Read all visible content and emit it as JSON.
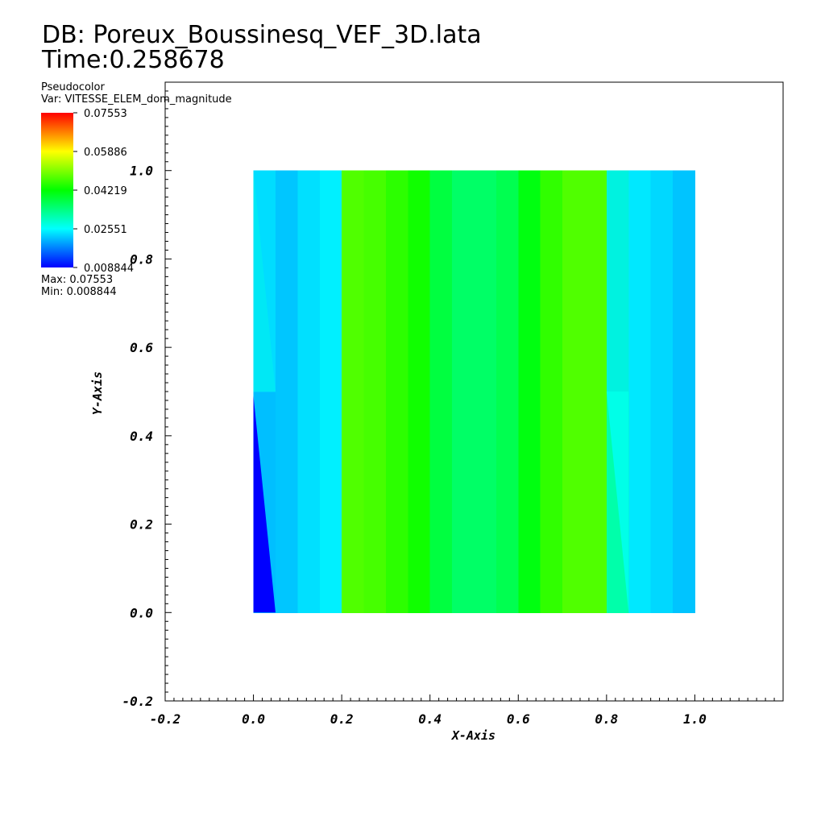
{
  "header": {
    "db_line": "DB: Poreux_Boussinesq_VEF_3D.lata",
    "time_line": "Time:0.258678"
  },
  "legend": {
    "plot_type": "Pseudocolor",
    "var_line": "Var: VITESSE_ELEM_dom_magnitude",
    "max_line": "Max: 0.07553",
    "min_line": "Min: 0.008844",
    "tick_labels": [
      "0.07553",
      "0.05886",
      "0.04219",
      "0.02551",
      "0.008844"
    ],
    "colormap": [
      "#ff0000",
      "#ffff00",
      "#00ff00",
      "#00ffff",
      "#0000ff"
    ]
  },
  "chart_data": {
    "type": "heatmap",
    "title": "DB: Poreux_Boussinesq_VEF_3D.lata",
    "subtitle": "Time:0.258678",
    "variable": "VITESSE_ELEM_dom_magnitude",
    "xlabel": "X-Axis",
    "ylabel": "Y-Axis",
    "xlim": [
      -0.2,
      1.2
    ],
    "ylim": [
      -0.2,
      1.2
    ],
    "x_ticks": [
      -0.2,
      0.0,
      0.2,
      0.4,
      0.6,
      0.8,
      1.0
    ],
    "y_ticks": [
      -0.2,
      0.0,
      0.2,
      0.4,
      0.6,
      0.8,
      1.0
    ],
    "x_tick_labels": [
      "-0.2",
      "0.0",
      "0.2",
      "0.4",
      "0.6",
      "0.8",
      "1.0"
    ],
    "y_tick_labels": [
      "-0.2",
      "0.0",
      "0.2",
      "0.4",
      "0.6",
      "0.8",
      "1.0"
    ],
    "colorbar": {
      "min": 0.008844,
      "max": 0.07553,
      "ticks": [
        0.07553,
        0.05886,
        0.04219,
        0.02551,
        0.008844
      ]
    },
    "domain": {
      "x": [
        0.0,
        1.0
      ],
      "y": [
        0.0,
        1.0
      ]
    },
    "cells": [
      {
        "x": [
          0.0,
          0.05
        ],
        "y": [
          0.0,
          0.5
        ],
        "color": "#00bfff"
      },
      {
        "x": [
          0.0,
          0.05
        ],
        "y": [
          0.5,
          1.0
        ],
        "color": "#00ddff"
      },
      {
        "x": [
          0.05,
          0.1
        ],
        "y": [
          0.0,
          1.0
        ],
        "color": "#00c6ff"
      },
      {
        "x": [
          0.1,
          0.15
        ],
        "y": [
          0.0,
          1.0
        ],
        "color": "#00e0ff"
      },
      {
        "x": [
          0.15,
          0.2
        ],
        "y": [
          0.0,
          1.0
        ],
        "color": "#00f0ff"
      },
      {
        "x": [
          0.2,
          0.25
        ],
        "y": [
          0.0,
          1.0
        ],
        "color": "#50ff00"
      },
      {
        "x": [
          0.25,
          0.3
        ],
        "y": [
          0.0,
          1.0
        ],
        "color": "#46ff00"
      },
      {
        "x": [
          0.3,
          0.35
        ],
        "y": [
          0.0,
          1.0
        ],
        "color": "#2cff00"
      },
      {
        "x": [
          0.35,
          0.4
        ],
        "y": [
          0.0,
          1.0
        ],
        "color": "#10ff00"
      },
      {
        "x": [
          0.4,
          0.45
        ],
        "y": [
          0.0,
          1.0
        ],
        "color": "#00ff40"
      },
      {
        "x": [
          0.45,
          0.55
        ],
        "y": [
          0.0,
          1.0
        ],
        "color": "#00ff66"
      },
      {
        "x": [
          0.55,
          0.6
        ],
        "y": [
          0.0,
          1.0
        ],
        "color": "#00ff50"
      },
      {
        "x": [
          0.6,
          0.65
        ],
        "y": [
          0.0,
          1.0
        ],
        "color": "#00ff10"
      },
      {
        "x": [
          0.65,
          0.7
        ],
        "y": [
          0.0,
          1.0
        ],
        "color": "#30ff00"
      },
      {
        "x": [
          0.7,
          0.8
        ],
        "y": [
          0.0,
          1.0
        ],
        "color": "#50ff00"
      },
      {
        "x": [
          0.8,
          0.85
        ],
        "y": [
          0.0,
          0.5
        ],
        "color": "#00ffaa"
      },
      {
        "x": [
          0.8,
          0.85
        ],
        "y": [
          0.5,
          1.0
        ],
        "color": "#00f2e0"
      },
      {
        "x": [
          0.85,
          0.9
        ],
        "y": [
          0.0,
          1.0
        ],
        "color": "#00e8ff"
      },
      {
        "x": [
          0.9,
          0.95
        ],
        "y": [
          0.0,
          1.0
        ],
        "color": "#00d8ff"
      },
      {
        "x": [
          0.95,
          1.0
        ],
        "y": [
          0.0,
          1.0
        ],
        "color": "#00c4ff"
      }
    ],
    "triangles": [
      {
        "points": [
          [
            0.0,
            0.0
          ],
          [
            0.05,
            0.0
          ],
          [
            0.0,
            0.49
          ]
        ],
        "color": "#0000ff"
      },
      {
        "points": [
          [
            0.0,
            0.5
          ],
          [
            0.05,
            0.5
          ],
          [
            0.0,
            1.0
          ]
        ],
        "color": "#00e8f5"
      },
      {
        "points": [
          [
            0.8,
            0.5
          ],
          [
            0.85,
            0.5
          ],
          [
            0.85,
            0.0
          ]
        ],
        "color": "#00ffe8"
      }
    ]
  }
}
